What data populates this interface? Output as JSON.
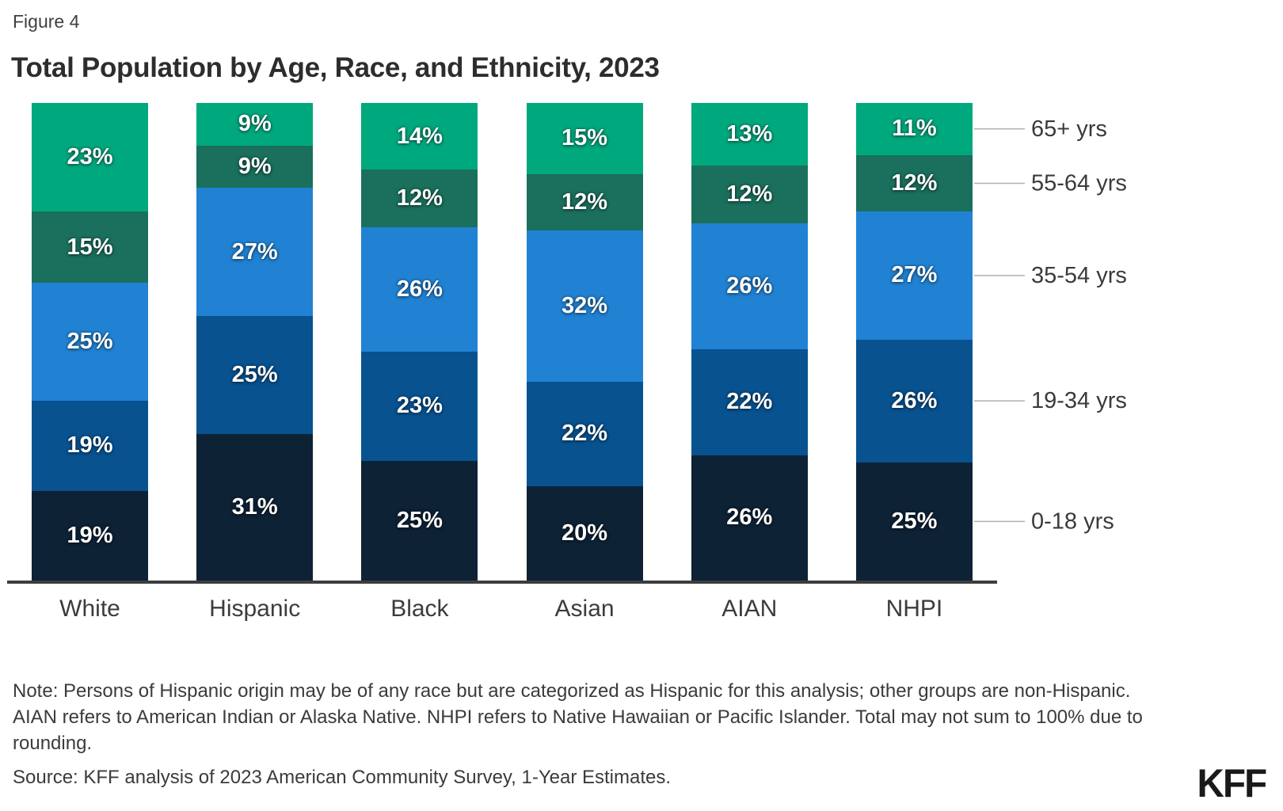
{
  "figure_label": "Figure 4",
  "title": "Total Population by Age, Race, and Ethnicity, 2023",
  "chart_data": {
    "type": "bar",
    "subtype": "stacked-percent-column",
    "categories": [
      "White",
      "Hispanic",
      "Black",
      "Asian",
      "AIAN",
      "NHPI"
    ],
    "series": [
      {
        "name": "0-18 yrs",
        "color": "#0e2236",
        "values": [
          19,
          31,
          25,
          20,
          26,
          25
        ]
      },
      {
        "name": "19-34 yrs",
        "color": "#085290",
        "values": [
          19,
          25,
          23,
          22,
          22,
          26
        ]
      },
      {
        "name": "35-54 yrs",
        "color": "#2182d3",
        "values": [
          25,
          27,
          26,
          32,
          26,
          27
        ]
      },
      {
        "name": "55-64 yrs",
        "color": "#1a705c",
        "values": [
          15,
          9,
          12,
          12,
          12,
          12
        ]
      },
      {
        "name": "65+ yrs",
        "color": "#00a87e",
        "values": [
          23,
          9,
          14,
          15,
          13,
          11
        ]
      }
    ],
    "value_suffix": "%",
    "ylim": [
      0,
      100
    ],
    "grid": false,
    "legend_position": "right",
    "legend_order_top_to_bottom": [
      "65+ yrs",
      "55-64 yrs",
      "35-54 yrs",
      "19-34 yrs",
      "0-18 yrs"
    ],
    "title": "Total Population by Age, Race, and Ethnicity, 2023",
    "xlabel": "",
    "ylabel": ""
  },
  "colors": {
    "baseline": "#3d3d3d",
    "connector_line": "#b0b0b0",
    "axis_text": "#3c3c3c",
    "note_text": "#3b3b3b"
  },
  "note": "Note: Persons of Hispanic origin may be of any race but are categorized as Hispanic for this analysis; other groups are non-Hispanic. AIAN refers to American Indian or Alaska Native. NHPI refers to Native Hawaiian or Pacific Islander. Total may not sum to 100% due to rounding.",
  "source": "Source: KFF analysis of 2023 American Community Survey, 1-Year Estimates.",
  "logo": "KFF"
}
